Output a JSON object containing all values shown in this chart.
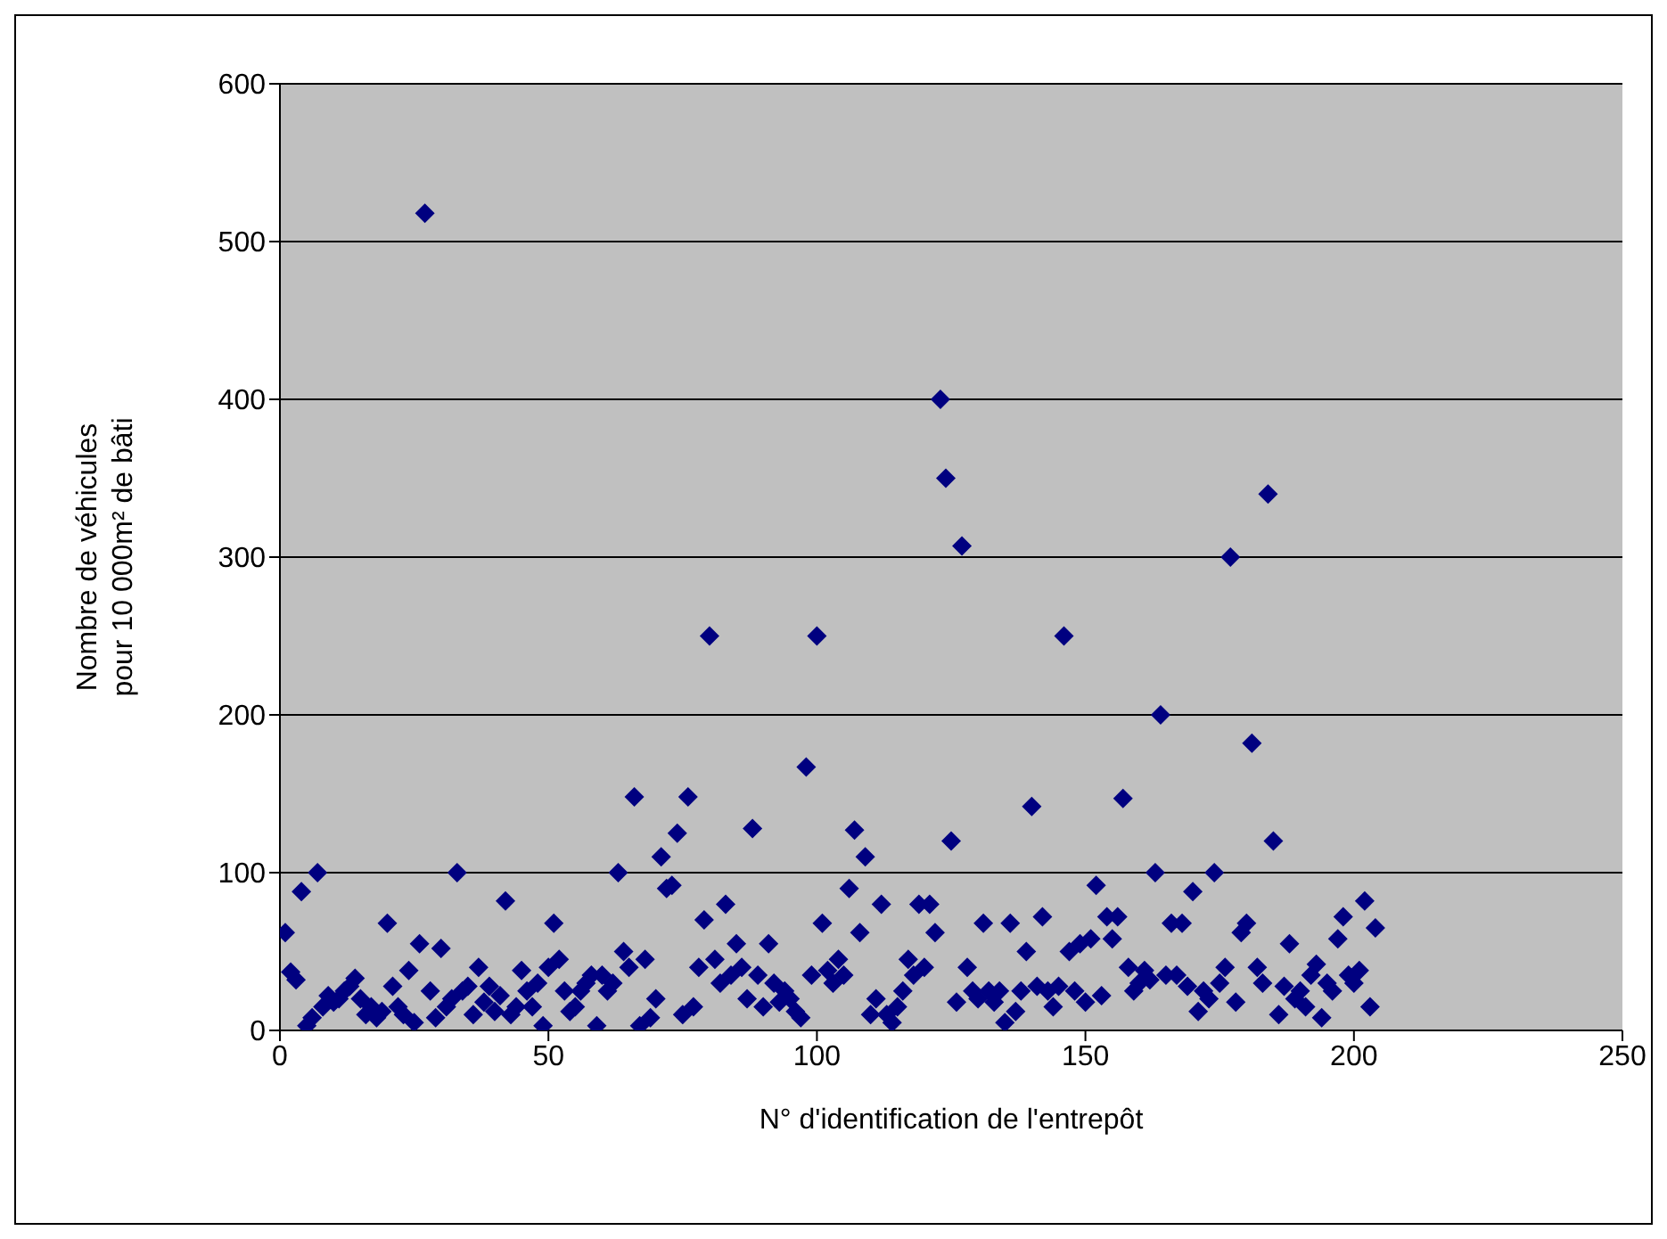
{
  "chart_data": {
    "type": "scatter",
    "xlabel": "N° d'identification de l'entrepôt",
    "ylabel": "Nombre de véhicules\npour 10 000m² de bâti",
    "xlim": [
      0,
      250
    ],
    "xticks": [
      0,
      50,
      100,
      150,
      200,
      250
    ],
    "ylim": [
      0,
      600
    ],
    "yticks": [
      0,
      100,
      200,
      300,
      400,
      500,
      600
    ],
    "grid": "y",
    "marker": "diamond",
    "legend": false,
    "series": [
      {
        "color": "#000080",
        "x": [
          1,
          2,
          3,
          4,
          5,
          6,
          7,
          8,
          9,
          10,
          11,
          12,
          13,
          14,
          15,
          16,
          17,
          18,
          19,
          20,
          21,
          22,
          23,
          24,
          25,
          26,
          27,
          28,
          29,
          30,
          31,
          32,
          33,
          34,
          35,
          36,
          37,
          38,
          39,
          40,
          41,
          42,
          43,
          44,
          45,
          46,
          47,
          48,
          49,
          50,
          51,
          52,
          53,
          54,
          55,
          56,
          57,
          58,
          59,
          60,
          61,
          62,
          63,
          64,
          65,
          66,
          67,
          68,
          69,
          70,
          71,
          72,
          73,
          74,
          75,
          76,
          77,
          78,
          79,
          80,
          81,
          82,
          83,
          84,
          85,
          86,
          87,
          88,
          89,
          90,
          91,
          92,
          93,
          94,
          95,
          96,
          97,
          98,
          99,
          100,
          101,
          102,
          103,
          104,
          105,
          106,
          107,
          108,
          109,
          110,
          111,
          112,
          113,
          114,
          115,
          116,
          117,
          118,
          119,
          120,
          121,
          122,
          123,
          124,
          125,
          126,
          127,
          128,
          129,
          130,
          131,
          132,
          133,
          134,
          135,
          136,
          137,
          138,
          139,
          140,
          141,
          142,
          143,
          144,
          145,
          146,
          147,
          148,
          149,
          150,
          151,
          152,
          153,
          154,
          155,
          156,
          157,
          158,
          159,
          160,
          161,
          162,
          163,
          164,
          165,
          166,
          167,
          168,
          169,
          170,
          171,
          172,
          173,
          174,
          175,
          176,
          177,
          178,
          179,
          180,
          181,
          182,
          183,
          184,
          185,
          186,
          187,
          188,
          189,
          190,
          191,
          192,
          193,
          194,
          195,
          196,
          197,
          198,
          199,
          200,
          201,
          202,
          203,
          204
        ],
        "values": [
          62,
          37,
          32,
          88,
          3,
          8,
          100,
          15,
          22,
          18,
          20,
          25,
          28,
          33,
          20,
          10,
          15,
          8,
          12,
          68,
          28,
          15,
          10,
          38,
          5,
          55,
          518,
          25,
          8,
          52,
          15,
          20,
          100,
          25,
          28,
          10,
          40,
          18,
          28,
          12,
          22,
          82,
          10,
          15,
          38,
          25,
          15,
          30,
          3,
          40,
          68,
          45,
          25,
          12,
          15,
          25,
          30,
          35,
          3,
          35,
          25,
          30,
          100,
          50,
          40,
          148,
          3,
          45,
          8,
          20,
          110,
          90,
          92,
          125,
          10,
          148,
          15,
          40,
          70,
          250,
          45,
          30,
          80,
          35,
          55,
          40,
          20,
          128,
          35,
          15,
          55,
          30,
          18,
          25,
          20,
          12,
          8,
          167,
          35,
          250,
          68,
          38,
          30,
          45,
          35,
          90,
          127,
          62,
          110,
          10,
          20,
          80,
          10,
          5,
          15,
          25,
          45,
          35,
          80,
          40,
          80,
          62,
          400,
          350,
          120,
          18,
          307,
          40,
          25,
          20,
          68,
          25,
          18,
          25,
          5,
          68,
          12,
          25,
          50,
          142,
          28,
          72,
          25,
          15,
          28,
          250,
          50,
          25,
          55,
          18,
          58,
          92,
          22,
          72,
          58,
          72,
          147,
          40,
          25,
          30,
          38,
          32,
          100,
          200,
          35,
          68,
          35,
          68,
          28,
          88,
          12,
          25,
          20,
          100,
          30,
          40,
          300,
          18,
          62,
          68,
          182,
          40,
          30,
          340,
          120,
          10,
          28,
          55,
          20,
          25,
          15,
          35,
          42,
          8,
          30,
          25,
          58,
          72,
          35,
          30,
          38,
          82,
          15,
          65
        ]
      }
    ]
  }
}
